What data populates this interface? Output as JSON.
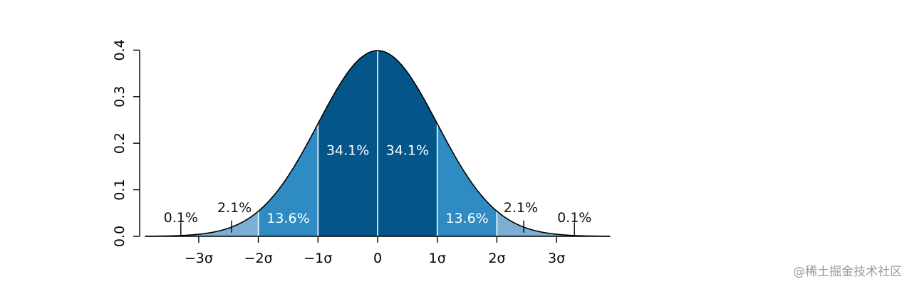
{
  "chart_data": {
    "type": "area",
    "distribution": "normal",
    "mean": 0,
    "sd": 1,
    "x_range": [
      -3.9,
      3.9
    ],
    "ylim": [
      0.0,
      0.4
    ],
    "yticks": [
      0.0,
      0.1,
      0.2,
      0.3,
      0.4
    ],
    "ytick_labels": [
      "0.0",
      "0.1",
      "0.2",
      "0.3",
      "0.4"
    ],
    "xticks": [
      -3,
      -2,
      -1,
      0,
      1,
      2,
      3
    ],
    "xtick_labels": [
      "−3σ",
      "−2σ",
      "−1σ",
      "0",
      "1σ",
      "2σ",
      "3σ"
    ],
    "grid": false,
    "bands": [
      {
        "from": -3.9,
        "to": -2,
        "color": "#7aaed3"
      },
      {
        "from": -2,
        "to": -1,
        "color": "#2e8cc2"
      },
      {
        "from": -1,
        "to": 0,
        "color": "#04568a"
      },
      {
        "from": 0,
        "to": 1,
        "color": "#04568a"
      },
      {
        "from": 1,
        "to": 2,
        "color": "#2e8cc2"
      },
      {
        "from": 2,
        "to": 3.9,
        "color": "#7aaed3"
      }
    ],
    "band_dividers": [
      -2,
      -1,
      0,
      1,
      2
    ],
    "region_labels": [
      {
        "text": "34.1%",
        "x": -0.5,
        "y": 0.184,
        "color": "#ffffff"
      },
      {
        "text": "34.1%",
        "x": 0.5,
        "y": 0.184,
        "color": "#ffffff"
      },
      {
        "text": "13.6%",
        "x": -1.5,
        "y": 0.038,
        "color": "#ffffff"
      },
      {
        "text": "13.6%",
        "x": 1.5,
        "y": 0.038,
        "color": "#ffffff"
      },
      {
        "text": "2.1%",
        "x": -2.4,
        "y": 0.061,
        "color": "#111111"
      },
      {
        "text": "2.1%",
        "x": 2.4,
        "y": 0.061,
        "color": "#111111"
      },
      {
        "text": "0.1%",
        "x": -3.3,
        "y": 0.04,
        "color": "#111111"
      },
      {
        "text": "0.1%",
        "x": 3.3,
        "y": 0.04,
        "color": "#111111"
      }
    ],
    "leader_lines": [
      {
        "x": -2.45,
        "y_from": 0.008,
        "y_to": 0.034
      },
      {
        "x": 2.45,
        "y_from": 0.008,
        "y_to": 0.034
      },
      {
        "x": -3.3,
        "y_from": 0.003,
        "y_to": 0.03
      },
      {
        "x": 3.3,
        "y_from": 0.003,
        "y_to": 0.03
      }
    ],
    "curve_color": "#000000"
  },
  "watermark": "@稀土掘金技术社区"
}
